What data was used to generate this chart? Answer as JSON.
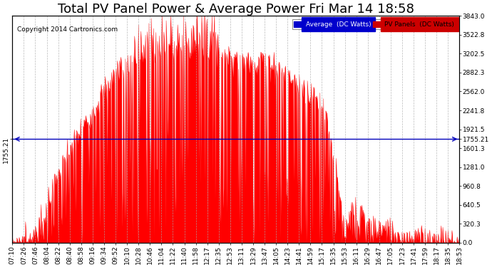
{
  "title": "Total PV Panel Power & Average Power Fri Mar 14 18:58",
  "copyright": "Copyright 2014 Cartronics.com",
  "average_value": 1755.21,
  "ymax": 3843.0,
  "ymin": 0.0,
  "ylabel_right_ticks": [
    0.0,
    320.3,
    640.5,
    960.8,
    1281.0,
    1601.3,
    1921.5,
    2241.8,
    2562.0,
    2882.3,
    3202.5,
    3522.8,
    3843.0
  ],
  "legend_avg_color": "#0000cc",
  "legend_pv_color": "#cc0000",
  "legend_avg_label": "Average  (DC Watts)",
  "legend_pv_label": "PV Panels  (DC Watts)",
  "fill_color": "#ff0000",
  "avg_line_color": "#0000bb",
  "background_color": "#ffffff",
  "grid_color": "#aaaaaa",
  "title_fontsize": 13,
  "tick_fontsize": 6.5,
  "x_tick_labels": [
    "07:10",
    "07:26",
    "07:46",
    "08:04",
    "08:22",
    "08:40",
    "08:58",
    "09:16",
    "09:34",
    "09:52",
    "10:10",
    "10:28",
    "10:46",
    "11:04",
    "11:22",
    "11:40",
    "11:58",
    "12:17",
    "12:35",
    "12:53",
    "13:11",
    "13:29",
    "13:47",
    "14:05",
    "14:23",
    "14:41",
    "14:59",
    "15:17",
    "15:35",
    "15:53",
    "16:11",
    "16:29",
    "16:47",
    "17:05",
    "17:23",
    "17:41",
    "17:59",
    "18:17",
    "18:35",
    "18:53"
  ]
}
